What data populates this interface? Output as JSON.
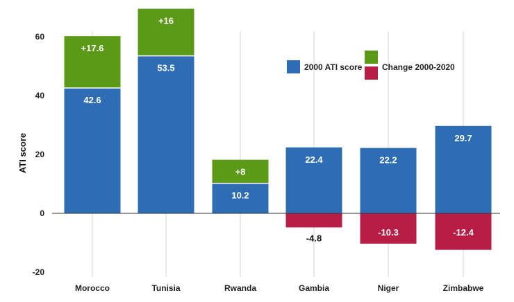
{
  "chart_data": {
    "type": "bar",
    "stacked": true,
    "categories": [
      "Morocco",
      "Tunisia",
      "Rwanda",
      "Gambia",
      "Niger",
      "Zimbabwe"
    ],
    "series": [
      {
        "name": "2000 ATI score",
        "values": [
          42.6,
          53.5,
          10.2,
          22.4,
          22.2,
          29.7
        ],
        "labels": [
          "42.6",
          "53.5",
          "10.2",
          "22.4",
          "22.2",
          "29.7"
        ]
      },
      {
        "name": "Change 2000-2020",
        "values": [
          17.6,
          16,
          8,
          -4.8,
          -10.3,
          -12.4
        ],
        "labels": [
          "+17.6",
          "+16",
          "+8",
          "-4.8",
          "-10.3",
          "-12.4"
        ]
      }
    ],
    "ylabel": "ATI score",
    "xlabel": "",
    "ylim": [
      -20,
      70
    ],
    "yticks": [
      60,
      40,
      20,
      0,
      -20
    ],
    "grid": "vertical-category-lines",
    "legend_position": "top-right"
  },
  "colors": {
    "base": "#2e6db4",
    "increase": "#5a9a17",
    "decrease": "#b81d45",
    "zero_line": "#333333",
    "grid": "#d4d4d4"
  }
}
